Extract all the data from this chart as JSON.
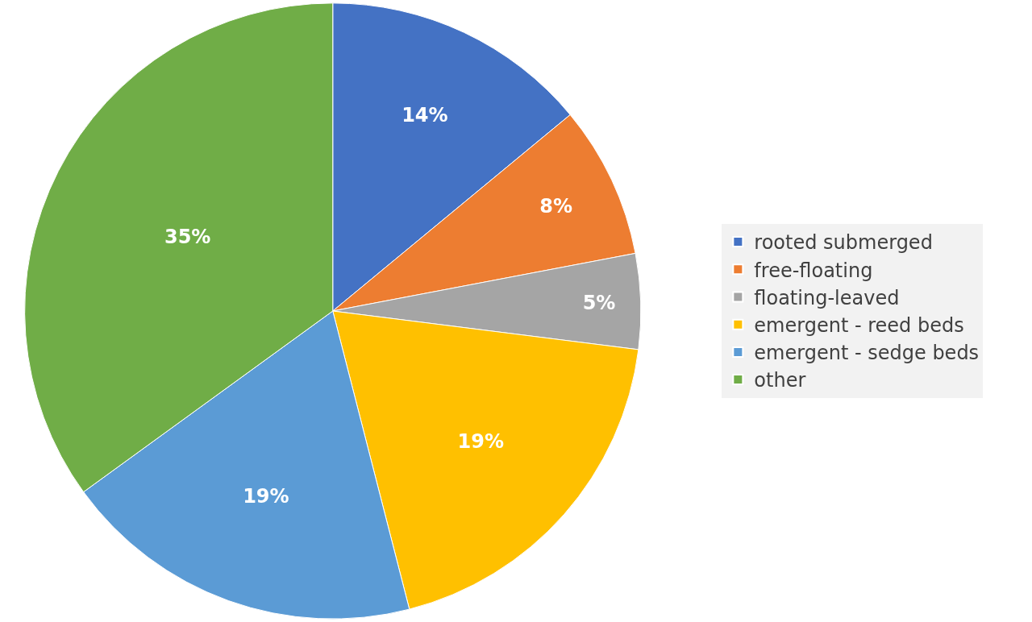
{
  "chart_data": {
    "type": "pie",
    "categories": [
      "rooted submerged",
      "free-floating",
      "floating-leaved",
      "emergent - reed beds",
      "emergent - sedge beds",
      "other"
    ],
    "values": [
      14,
      8,
      5,
      19,
      19,
      35
    ],
    "colors": [
      "#4472c4",
      "#ed7d31",
      "#a5a5a5",
      "#ffc000",
      "#5b9bd5",
      "#70ad47"
    ],
    "value_labels": [
      "14%",
      "8%",
      "5%",
      "19%",
      "19%",
      "35%"
    ],
    "legend": "right"
  }
}
